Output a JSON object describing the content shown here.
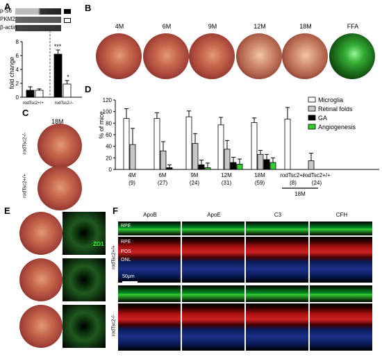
{
  "panels": {
    "a": "A",
    "b": "B",
    "c": "C",
    "d": "D",
    "e": "E",
    "f": "F"
  },
  "panelA": {
    "blot_labels": [
      "p-S6",
      "PKM2",
      "β-actin"
    ],
    "ylabel": "fold change",
    "yticks": [
      "0",
      "2",
      "4",
      "6",
      "8"
    ],
    "xlabels": [
      "rodTsc2+/+",
      "rodTsc2-/-"
    ],
    "sig": [
      "***",
      "*"
    ],
    "chart_data": {
      "type": "bar",
      "categories": [
        "rodTsc2+/+",
        "rodTsc2-/-"
      ],
      "series": [
        {
          "name": "p-S6",
          "values": [
            1.0,
            6.2
          ],
          "errors": [
            0.5,
            0.6
          ],
          "color": "#000000"
        },
        {
          "name": "PKM2",
          "values": [
            1.0,
            1.9
          ],
          "errors": [
            0.2,
            0.5
          ],
          "color": "#ffffff"
        }
      ],
      "ylim": [
        0,
        8
      ]
    }
  },
  "panelB": {
    "labels": [
      "4M",
      "6M",
      "9M",
      "12M",
      "18M",
      "FFA"
    ]
  },
  "panelC": {
    "title": "18M",
    "labels": [
      "rodTsc2-/-",
      "rodTsc2+/+"
    ]
  },
  "panelD": {
    "ylabel": "% of mice",
    "yticks": [
      "0",
      "20",
      "40",
      "60",
      "80",
      "100",
      "120"
    ],
    "legend": [
      "Microglia",
      "Retinal folds",
      "GA",
      "Angiogenesis"
    ],
    "groups": [
      "4M",
      "6M",
      "9M",
      "12M",
      "18M",
      "rodTsc2+/-",
      "rodTsc2+/+"
    ],
    "counts": [
      "(9)",
      "(27)",
      "(24)",
      "(31)",
      "(59)",
      "(8)",
      "(24)"
    ],
    "bracket_label": "18M",
    "chart_data": {
      "type": "bar",
      "categories": [
        "4M",
        "6M",
        "9M",
        "12M",
        "18M",
        "rodTsc2+/-",
        "rodTsc2+/+"
      ],
      "series": [
        {
          "name": "Microglia",
          "values": [
            88,
            88,
            91,
            77,
            81,
            87,
            0
          ],
          "errors": [
            17,
            10,
            10,
            13,
            8,
            20,
            0
          ],
          "color": "#ffffff"
        },
        {
          "name": "Retinal folds",
          "values": [
            43,
            32,
            45,
            35,
            26,
            0,
            15
          ],
          "errors": [
            28,
            16,
            17,
            15,
            7,
            0,
            13
          ],
          "color": "#c8c8c8"
        },
        {
          "name": "GA",
          "values": [
            0,
            3,
            8,
            12,
            17,
            0,
            0
          ],
          "errors": [
            0,
            5,
            8,
            9,
            9,
            0,
            0
          ],
          "color": "#000000"
        },
        {
          "name": "Angiogenesis",
          "values": [
            0,
            0,
            3,
            9,
            12,
            0,
            0
          ],
          "errors": [
            0,
            0,
            8,
            9,
            8,
            0,
            0
          ],
          "color": "#33cc33"
        }
      ],
      "ylim": [
        0,
        120
      ]
    }
  },
  "panelE": {
    "ifLabel": "ZO1"
  },
  "panelF": {
    "cols": [
      "ApoB",
      "ApoE",
      "C3",
      "CFH"
    ],
    "layers": [
      "RPE",
      "RPE",
      "POS",
      "ONL"
    ],
    "scale": "50μm",
    "rowlabels": [
      "rodTsc2+/+",
      "rodTsc2-/-"
    ]
  }
}
